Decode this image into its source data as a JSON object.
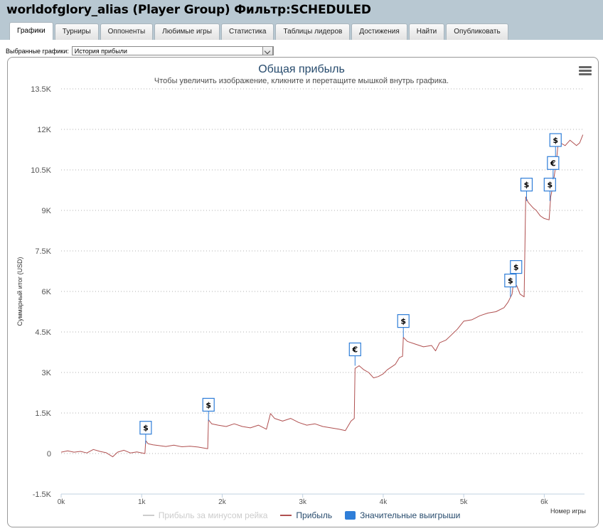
{
  "header": {
    "title": "worldofglory_alias (Player Group) Фильтр:SCHEDULED",
    "tabs": [
      {
        "label": "Графики",
        "active": true
      },
      {
        "label": "Турниры"
      },
      {
        "label": "Оппоненты"
      },
      {
        "label": "Любимые игры"
      },
      {
        "label": "Статистика"
      },
      {
        "label": "Таблицы лидеров"
      },
      {
        "label": "Достижения"
      },
      {
        "label": "Найти"
      },
      {
        "label": "Опубликовать"
      }
    ]
  },
  "selector": {
    "label": "Выбранные графики:",
    "value": "История прибыли"
  },
  "chart": {
    "title": "Общая прибыль",
    "subtitle": "Чтобы увеличить изображение, кликните и перетащите мышкой внутрь графика.",
    "ylabel": "Суммарный итог (USD)",
    "xlabel": "Номер игры",
    "menu_icon": "hamburger-menu-icon"
  },
  "legend": [
    {
      "label": "Прибыль за минусом рейка",
      "color": "#cccccc",
      "kind": "line",
      "disabled": true
    },
    {
      "label": "Прибыль",
      "color": "#b05050",
      "kind": "line"
    },
    {
      "label": "Значительные выигрыши",
      "color": "#2f7ed8",
      "kind": "box"
    }
  ],
  "chart_data": {
    "type": "line",
    "xlim": [
      0,
      6500
    ],
    "ylim": [
      -1500,
      13500
    ],
    "yticks": [
      -1500,
      0,
      1500,
      3000,
      4500,
      6000,
      7500,
      9000,
      10500,
      12000,
      13500
    ],
    "ytick_labels": [
      "-1.5K",
      "0",
      "1.5K",
      "3K",
      "4.5K",
      "6K",
      "7.5K",
      "9K",
      "10.5K",
      "12K",
      "13.5K"
    ],
    "xticks": [
      0,
      1000,
      2000,
      3000,
      4000,
      5000,
      6000
    ],
    "xtick_labels": [
      "0k",
      "1k",
      "2k",
      "3k",
      "4k",
      "5k",
      "6k"
    ],
    "grid": "horizontal dotted",
    "legend_position": "bottom-center",
    "series": [
      {
        "name": "Прибыль",
        "color": "#b05050",
        "points": [
          [
            0,
            50
          ],
          [
            80,
            100
          ],
          [
            160,
            50
          ],
          [
            240,
            80
          ],
          [
            320,
            20
          ],
          [
            400,
            150
          ],
          [
            480,
            80
          ],
          [
            560,
            30
          ],
          [
            640,
            -120
          ],
          [
            700,
            50
          ],
          [
            780,
            120
          ],
          [
            860,
            20
          ],
          [
            940,
            60
          ],
          [
            1040,
            0
          ],
          [
            1050,
            480
          ],
          [
            1080,
            360
          ],
          [
            1140,
            320
          ],
          [
            1200,
            300
          ],
          [
            1300,
            260
          ],
          [
            1400,
            310
          ],
          [
            1500,
            250
          ],
          [
            1600,
            270
          ],
          [
            1700,
            240
          ],
          [
            1820,
            180
          ],
          [
            1830,
            1250
          ],
          [
            1870,
            1100
          ],
          [
            1950,
            1050
          ],
          [
            2050,
            1000
          ],
          [
            2150,
            1100
          ],
          [
            2250,
            1000
          ],
          [
            2350,
            950
          ],
          [
            2450,
            1050
          ],
          [
            2550,
            900
          ],
          [
            2600,
            1480
          ],
          [
            2650,
            1300
          ],
          [
            2750,
            1200
          ],
          [
            2850,
            1300
          ],
          [
            2950,
            1150
          ],
          [
            3050,
            1050
          ],
          [
            3150,
            1100
          ],
          [
            3250,
            1000
          ],
          [
            3350,
            950
          ],
          [
            3450,
            900
          ],
          [
            3530,
            850
          ],
          [
            3600,
            1200
          ],
          [
            3640,
            1300
          ],
          [
            3650,
            3150
          ],
          [
            3700,
            3250
          ],
          [
            3760,
            3100
          ],
          [
            3820,
            3000
          ],
          [
            3880,
            2800
          ],
          [
            3940,
            2850
          ],
          [
            4000,
            2950
          ],
          [
            4050,
            3100
          ],
          [
            4100,
            3200
          ],
          [
            4150,
            3300
          ],
          [
            4200,
            3550
          ],
          [
            4240,
            3600
          ],
          [
            4250,
            4300
          ],
          [
            4300,
            4150
          ],
          [
            4400,
            4050
          ],
          [
            4500,
            3950
          ],
          [
            4600,
            4000
          ],
          [
            4650,
            3800
          ],
          [
            4700,
            4100
          ],
          [
            4780,
            4200
          ],
          [
            4850,
            4400
          ],
          [
            4920,
            4600
          ],
          [
            5000,
            4900
          ],
          [
            5100,
            4950
          ],
          [
            5200,
            5100
          ],
          [
            5300,
            5200
          ],
          [
            5400,
            5250
          ],
          [
            5500,
            5400
          ],
          [
            5550,
            5600
          ],
          [
            5600,
            5900
          ],
          [
            5620,
            6400
          ],
          [
            5660,
            6200
          ],
          [
            5700,
            5900
          ],
          [
            5750,
            5800
          ],
          [
            5770,
            9500
          ],
          [
            5800,
            9300
          ],
          [
            5860,
            9100
          ],
          [
            5900,
            9000
          ],
          [
            5950,
            8800
          ],
          [
            6000,
            8700
          ],
          [
            6060,
            8650
          ],
          [
            6080,
            9500
          ],
          [
            6100,
            9800
          ],
          [
            6120,
            10200
          ],
          [
            6150,
            10800
          ],
          [
            6170,
            11400
          ],
          [
            6200,
            11500
          ],
          [
            6260,
            11400
          ],
          [
            6320,
            11600
          ],
          [
            6400,
            11400
          ],
          [
            6440,
            11500
          ],
          [
            6480,
            11800
          ]
        ]
      }
    ],
    "significant_wins": [
      {
        "x": 1050,
        "y": 350,
        "label": "$"
      },
      {
        "x": 1830,
        "y": 1200,
        "label": "$"
      },
      {
        "x": 3650,
        "y": 3250,
        "label": "€"
      },
      {
        "x": 4250,
        "y": 4300,
        "label": "$"
      },
      {
        "x": 5580,
        "y": 5800,
        "label": "$"
      },
      {
        "x": 5650,
        "y": 6300,
        "label": "$"
      },
      {
        "x": 5780,
        "y": 9350,
        "label": "$"
      },
      {
        "x": 6070,
        "y": 9350,
        "label": "$"
      },
      {
        "x": 6110,
        "y": 10150,
        "label": "€"
      },
      {
        "x": 6140,
        "y": 11000,
        "label": "$"
      }
    ]
  }
}
